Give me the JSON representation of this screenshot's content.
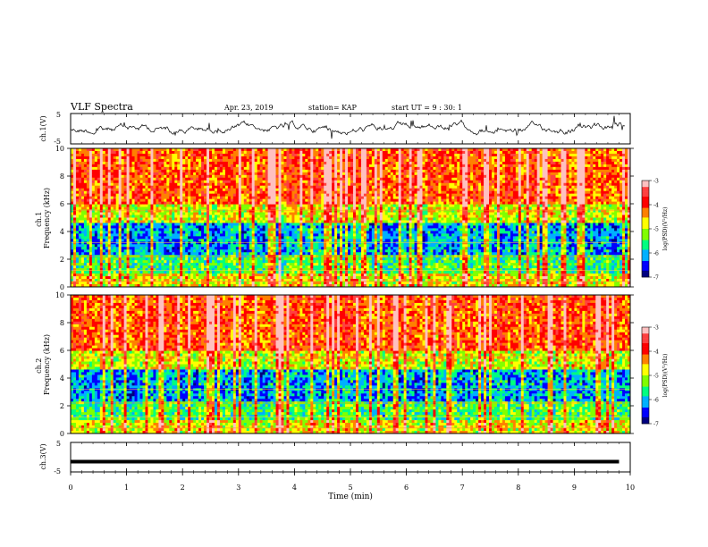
{
  "header": {
    "title": "VLF Spectra",
    "date": "Apr. 23, 2019",
    "station": "station= KAP",
    "start": "start  UT =   9 : 30: 1"
  },
  "chart_data": [
    {
      "type": "line",
      "ylabel": "ch.1(V)",
      "ylim": [
        -5,
        5
      ],
      "yticklabels": [
        "5",
        "-5"
      ],
      "xlim": [
        0,
        10
      ],
      "series": [
        {
          "note": "noisy waveform fluctuating mostly between about -2 and 2 V"
        }
      ]
    },
    {
      "type": "heatmap",
      "ylabel": "ch.1\nFrequency  (kHz)",
      "ylim": [
        0,
        10
      ],
      "yticklabels": [
        "0",
        "2",
        "4",
        "6",
        "8",
        "10"
      ],
      "xlim": [
        0,
        10
      ],
      "colorbar": {
        "label": "log(PSD)(V²/Hz)",
        "range": [
          -7,
          -3
        ],
        "ticklabels": [
          "-3",
          "-4",
          "-5",
          "-6",
          "-7"
        ]
      },
      "features": {
        "low_band_blue_kHz": [
          2.5,
          4.5
        ],
        "bright_vertical_stripe_min": 3.7
      }
    },
    {
      "type": "heatmap",
      "ylabel": "ch.2\nFrequency  (kHz)",
      "ylim": [
        0,
        10
      ],
      "yticklabels": [
        "0",
        "2",
        "4",
        "6",
        "8",
        "10"
      ],
      "xlim": [
        0,
        10
      ],
      "colorbar": {
        "label": "log(PSD)(V²/Hz)",
        "range": [
          -7,
          -3
        ],
        "ticklabels": [
          "-3",
          "-4",
          "-5",
          "-6",
          "-7"
        ]
      },
      "features": {
        "low_band_blue_kHz": [
          2.5,
          4.5
        ],
        "bright_vertical_stripe_min": 3.7
      }
    },
    {
      "type": "line",
      "ylabel": "ch.3(V)",
      "ylim": [
        -5,
        5
      ],
      "yticklabels": [
        "5",
        "-5"
      ],
      "xlim": [
        0,
        10
      ],
      "xlabel": "Time  (min)",
      "xticklabels": [
        "0",
        "1",
        "2",
        "3",
        "4",
        "5",
        "6",
        "7",
        "8",
        "9",
        "10"
      ],
      "series": [
        {
          "x": [
            0,
            9.8
          ],
          "y": [
            -1.5,
            -1.5
          ]
        }
      ]
    }
  ],
  "colors": {
    "scale": [
      "#000080",
      "#0000ff",
      "#00b0ff",
      "#00ff80",
      "#80ff00",
      "#ffff00",
      "#ff8000",
      "#ff0000",
      "#ff4040",
      "#ffc0c0"
    ]
  }
}
